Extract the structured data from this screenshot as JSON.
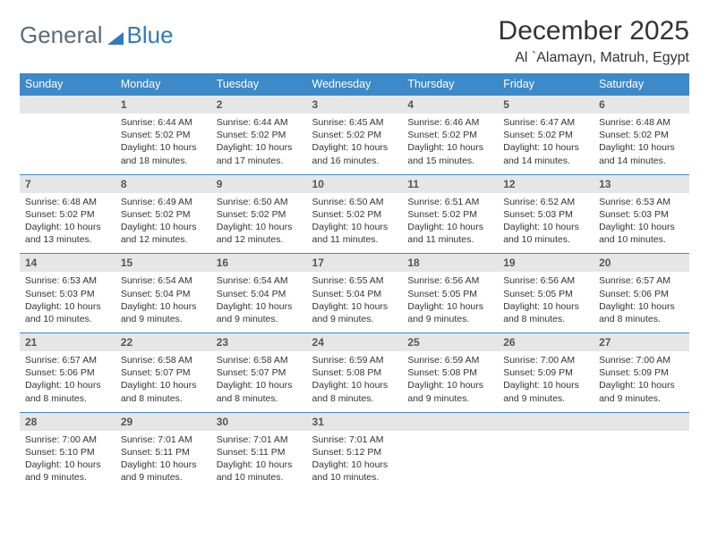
{
  "brand": {
    "part1": "General",
    "part2": "Blue"
  },
  "title": "December 2025",
  "location": "Al `Alamayn, Matruh, Egypt",
  "weekdays": [
    "Sunday",
    "Monday",
    "Tuesday",
    "Wednesday",
    "Thursday",
    "Friday",
    "Saturday"
  ],
  "colors": {
    "header_bg": "#3e89c8",
    "header_text": "#ffffff",
    "row_border": "#3e89c8",
    "daynum_bg": "#e6e6e6",
    "daynum_text": "#555555",
    "body_text": "#333333",
    "logo_gray": "#5b6b78",
    "logo_blue": "#2f7bbf",
    "page_bg": "#ffffff"
  },
  "firstWeekdayIndex": 1,
  "days": [
    {
      "n": 1,
      "sunrise": "6:44 AM",
      "sunset": "5:02 PM",
      "daylight": "10 hours and 18 minutes."
    },
    {
      "n": 2,
      "sunrise": "6:44 AM",
      "sunset": "5:02 PM",
      "daylight": "10 hours and 17 minutes."
    },
    {
      "n": 3,
      "sunrise": "6:45 AM",
      "sunset": "5:02 PM",
      "daylight": "10 hours and 16 minutes."
    },
    {
      "n": 4,
      "sunrise": "6:46 AM",
      "sunset": "5:02 PM",
      "daylight": "10 hours and 15 minutes."
    },
    {
      "n": 5,
      "sunrise": "6:47 AM",
      "sunset": "5:02 PM",
      "daylight": "10 hours and 14 minutes."
    },
    {
      "n": 6,
      "sunrise": "6:48 AM",
      "sunset": "5:02 PM",
      "daylight": "10 hours and 14 minutes."
    },
    {
      "n": 7,
      "sunrise": "6:48 AM",
      "sunset": "5:02 PM",
      "daylight": "10 hours and 13 minutes."
    },
    {
      "n": 8,
      "sunrise": "6:49 AM",
      "sunset": "5:02 PM",
      "daylight": "10 hours and 12 minutes."
    },
    {
      "n": 9,
      "sunrise": "6:50 AM",
      "sunset": "5:02 PM",
      "daylight": "10 hours and 12 minutes."
    },
    {
      "n": 10,
      "sunrise": "6:50 AM",
      "sunset": "5:02 PM",
      "daylight": "10 hours and 11 minutes."
    },
    {
      "n": 11,
      "sunrise": "6:51 AM",
      "sunset": "5:02 PM",
      "daylight": "10 hours and 11 minutes."
    },
    {
      "n": 12,
      "sunrise": "6:52 AM",
      "sunset": "5:03 PM",
      "daylight": "10 hours and 10 minutes."
    },
    {
      "n": 13,
      "sunrise": "6:53 AM",
      "sunset": "5:03 PM",
      "daylight": "10 hours and 10 minutes."
    },
    {
      "n": 14,
      "sunrise": "6:53 AM",
      "sunset": "5:03 PM",
      "daylight": "10 hours and 10 minutes."
    },
    {
      "n": 15,
      "sunrise": "6:54 AM",
      "sunset": "5:04 PM",
      "daylight": "10 hours and 9 minutes."
    },
    {
      "n": 16,
      "sunrise": "6:54 AM",
      "sunset": "5:04 PM",
      "daylight": "10 hours and 9 minutes."
    },
    {
      "n": 17,
      "sunrise": "6:55 AM",
      "sunset": "5:04 PM",
      "daylight": "10 hours and 9 minutes."
    },
    {
      "n": 18,
      "sunrise": "6:56 AM",
      "sunset": "5:05 PM",
      "daylight": "10 hours and 9 minutes."
    },
    {
      "n": 19,
      "sunrise": "6:56 AM",
      "sunset": "5:05 PM",
      "daylight": "10 hours and 8 minutes."
    },
    {
      "n": 20,
      "sunrise": "6:57 AM",
      "sunset": "5:06 PM",
      "daylight": "10 hours and 8 minutes."
    },
    {
      "n": 21,
      "sunrise": "6:57 AM",
      "sunset": "5:06 PM",
      "daylight": "10 hours and 8 minutes."
    },
    {
      "n": 22,
      "sunrise": "6:58 AM",
      "sunset": "5:07 PM",
      "daylight": "10 hours and 8 minutes."
    },
    {
      "n": 23,
      "sunrise": "6:58 AM",
      "sunset": "5:07 PM",
      "daylight": "10 hours and 8 minutes."
    },
    {
      "n": 24,
      "sunrise": "6:59 AM",
      "sunset": "5:08 PM",
      "daylight": "10 hours and 8 minutes."
    },
    {
      "n": 25,
      "sunrise": "6:59 AM",
      "sunset": "5:08 PM",
      "daylight": "10 hours and 9 minutes."
    },
    {
      "n": 26,
      "sunrise": "7:00 AM",
      "sunset": "5:09 PM",
      "daylight": "10 hours and 9 minutes."
    },
    {
      "n": 27,
      "sunrise": "7:00 AM",
      "sunset": "5:09 PM",
      "daylight": "10 hours and 9 minutes."
    },
    {
      "n": 28,
      "sunrise": "7:00 AM",
      "sunset": "5:10 PM",
      "daylight": "10 hours and 9 minutes."
    },
    {
      "n": 29,
      "sunrise": "7:01 AM",
      "sunset": "5:11 PM",
      "daylight": "10 hours and 9 minutes."
    },
    {
      "n": 30,
      "sunrise": "7:01 AM",
      "sunset": "5:11 PM",
      "daylight": "10 hours and 10 minutes."
    },
    {
      "n": 31,
      "sunrise": "7:01 AM",
      "sunset": "5:12 PM",
      "daylight": "10 hours and 10 minutes."
    }
  ],
  "labels": {
    "sunrise": "Sunrise:",
    "sunset": "Sunset:",
    "daylight": "Daylight:"
  }
}
